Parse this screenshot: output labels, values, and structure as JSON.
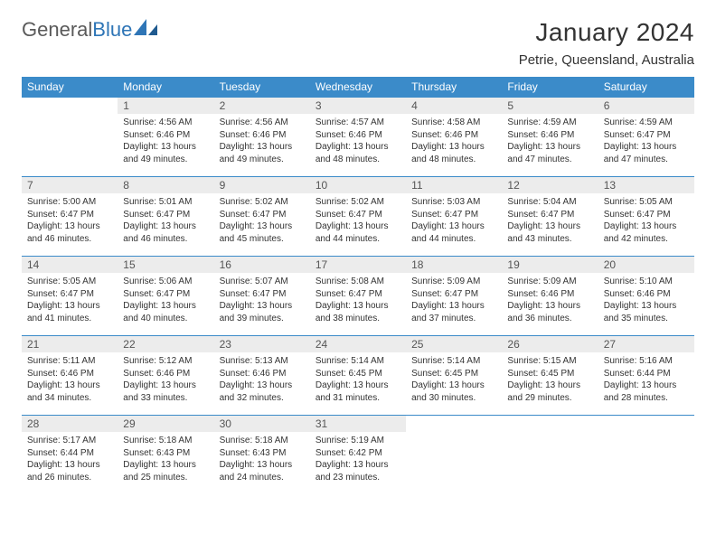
{
  "logo": {
    "word1": "General",
    "word2": "Blue"
  },
  "header": {
    "month_title": "January 2024",
    "location": "Petrie, Queensland, Australia"
  },
  "styling": {
    "header_bg": "#3b8bc9",
    "header_fg": "#ffffff",
    "daynum_bg": "#ececec",
    "daynum_fg": "#555555",
    "body_fg": "#333333",
    "border_color": "#3b8bc9",
    "page_bg": "#ffffff",
    "title_fontsize": 28,
    "location_fontsize": 15,
    "dayheader_fontsize": 12,
    "body_fontsize": 10,
    "logo_gray": "#5a5a5a",
    "logo_blue": "#2e75b6"
  },
  "weekdays": [
    "Sunday",
    "Monday",
    "Tuesday",
    "Wednesday",
    "Thursday",
    "Friday",
    "Saturday"
  ],
  "weeks": [
    [
      null,
      {
        "n": "1",
        "sunrise": "Sunrise: 4:56 AM",
        "sunset": "Sunset: 6:46 PM",
        "daylight": "Daylight: 13 hours and 49 minutes."
      },
      {
        "n": "2",
        "sunrise": "Sunrise: 4:56 AM",
        "sunset": "Sunset: 6:46 PM",
        "daylight": "Daylight: 13 hours and 49 minutes."
      },
      {
        "n": "3",
        "sunrise": "Sunrise: 4:57 AM",
        "sunset": "Sunset: 6:46 PM",
        "daylight": "Daylight: 13 hours and 48 minutes."
      },
      {
        "n": "4",
        "sunrise": "Sunrise: 4:58 AM",
        "sunset": "Sunset: 6:46 PM",
        "daylight": "Daylight: 13 hours and 48 minutes."
      },
      {
        "n": "5",
        "sunrise": "Sunrise: 4:59 AM",
        "sunset": "Sunset: 6:46 PM",
        "daylight": "Daylight: 13 hours and 47 minutes."
      },
      {
        "n": "6",
        "sunrise": "Sunrise: 4:59 AM",
        "sunset": "Sunset: 6:47 PM",
        "daylight": "Daylight: 13 hours and 47 minutes."
      }
    ],
    [
      {
        "n": "7",
        "sunrise": "Sunrise: 5:00 AM",
        "sunset": "Sunset: 6:47 PM",
        "daylight": "Daylight: 13 hours and 46 minutes."
      },
      {
        "n": "8",
        "sunrise": "Sunrise: 5:01 AM",
        "sunset": "Sunset: 6:47 PM",
        "daylight": "Daylight: 13 hours and 46 minutes."
      },
      {
        "n": "9",
        "sunrise": "Sunrise: 5:02 AM",
        "sunset": "Sunset: 6:47 PM",
        "daylight": "Daylight: 13 hours and 45 minutes."
      },
      {
        "n": "10",
        "sunrise": "Sunrise: 5:02 AM",
        "sunset": "Sunset: 6:47 PM",
        "daylight": "Daylight: 13 hours and 44 minutes."
      },
      {
        "n": "11",
        "sunrise": "Sunrise: 5:03 AM",
        "sunset": "Sunset: 6:47 PM",
        "daylight": "Daylight: 13 hours and 44 minutes."
      },
      {
        "n": "12",
        "sunrise": "Sunrise: 5:04 AM",
        "sunset": "Sunset: 6:47 PM",
        "daylight": "Daylight: 13 hours and 43 minutes."
      },
      {
        "n": "13",
        "sunrise": "Sunrise: 5:05 AM",
        "sunset": "Sunset: 6:47 PM",
        "daylight": "Daylight: 13 hours and 42 minutes."
      }
    ],
    [
      {
        "n": "14",
        "sunrise": "Sunrise: 5:05 AM",
        "sunset": "Sunset: 6:47 PM",
        "daylight": "Daylight: 13 hours and 41 minutes."
      },
      {
        "n": "15",
        "sunrise": "Sunrise: 5:06 AM",
        "sunset": "Sunset: 6:47 PM",
        "daylight": "Daylight: 13 hours and 40 minutes."
      },
      {
        "n": "16",
        "sunrise": "Sunrise: 5:07 AM",
        "sunset": "Sunset: 6:47 PM",
        "daylight": "Daylight: 13 hours and 39 minutes."
      },
      {
        "n": "17",
        "sunrise": "Sunrise: 5:08 AM",
        "sunset": "Sunset: 6:47 PM",
        "daylight": "Daylight: 13 hours and 38 minutes."
      },
      {
        "n": "18",
        "sunrise": "Sunrise: 5:09 AM",
        "sunset": "Sunset: 6:47 PM",
        "daylight": "Daylight: 13 hours and 37 minutes."
      },
      {
        "n": "19",
        "sunrise": "Sunrise: 5:09 AM",
        "sunset": "Sunset: 6:46 PM",
        "daylight": "Daylight: 13 hours and 36 minutes."
      },
      {
        "n": "20",
        "sunrise": "Sunrise: 5:10 AM",
        "sunset": "Sunset: 6:46 PM",
        "daylight": "Daylight: 13 hours and 35 minutes."
      }
    ],
    [
      {
        "n": "21",
        "sunrise": "Sunrise: 5:11 AM",
        "sunset": "Sunset: 6:46 PM",
        "daylight": "Daylight: 13 hours and 34 minutes."
      },
      {
        "n": "22",
        "sunrise": "Sunrise: 5:12 AM",
        "sunset": "Sunset: 6:46 PM",
        "daylight": "Daylight: 13 hours and 33 minutes."
      },
      {
        "n": "23",
        "sunrise": "Sunrise: 5:13 AM",
        "sunset": "Sunset: 6:46 PM",
        "daylight": "Daylight: 13 hours and 32 minutes."
      },
      {
        "n": "24",
        "sunrise": "Sunrise: 5:14 AM",
        "sunset": "Sunset: 6:45 PM",
        "daylight": "Daylight: 13 hours and 31 minutes."
      },
      {
        "n": "25",
        "sunrise": "Sunrise: 5:14 AM",
        "sunset": "Sunset: 6:45 PM",
        "daylight": "Daylight: 13 hours and 30 minutes."
      },
      {
        "n": "26",
        "sunrise": "Sunrise: 5:15 AM",
        "sunset": "Sunset: 6:45 PM",
        "daylight": "Daylight: 13 hours and 29 minutes."
      },
      {
        "n": "27",
        "sunrise": "Sunrise: 5:16 AM",
        "sunset": "Sunset: 6:44 PM",
        "daylight": "Daylight: 13 hours and 28 minutes."
      }
    ],
    [
      {
        "n": "28",
        "sunrise": "Sunrise: 5:17 AM",
        "sunset": "Sunset: 6:44 PM",
        "daylight": "Daylight: 13 hours and 26 minutes."
      },
      {
        "n": "29",
        "sunrise": "Sunrise: 5:18 AM",
        "sunset": "Sunset: 6:43 PM",
        "daylight": "Daylight: 13 hours and 25 minutes."
      },
      {
        "n": "30",
        "sunrise": "Sunrise: 5:18 AM",
        "sunset": "Sunset: 6:43 PM",
        "daylight": "Daylight: 13 hours and 24 minutes."
      },
      {
        "n": "31",
        "sunrise": "Sunrise: 5:19 AM",
        "sunset": "Sunset: 6:42 PM",
        "daylight": "Daylight: 13 hours and 23 minutes."
      },
      null,
      null,
      null
    ]
  ]
}
